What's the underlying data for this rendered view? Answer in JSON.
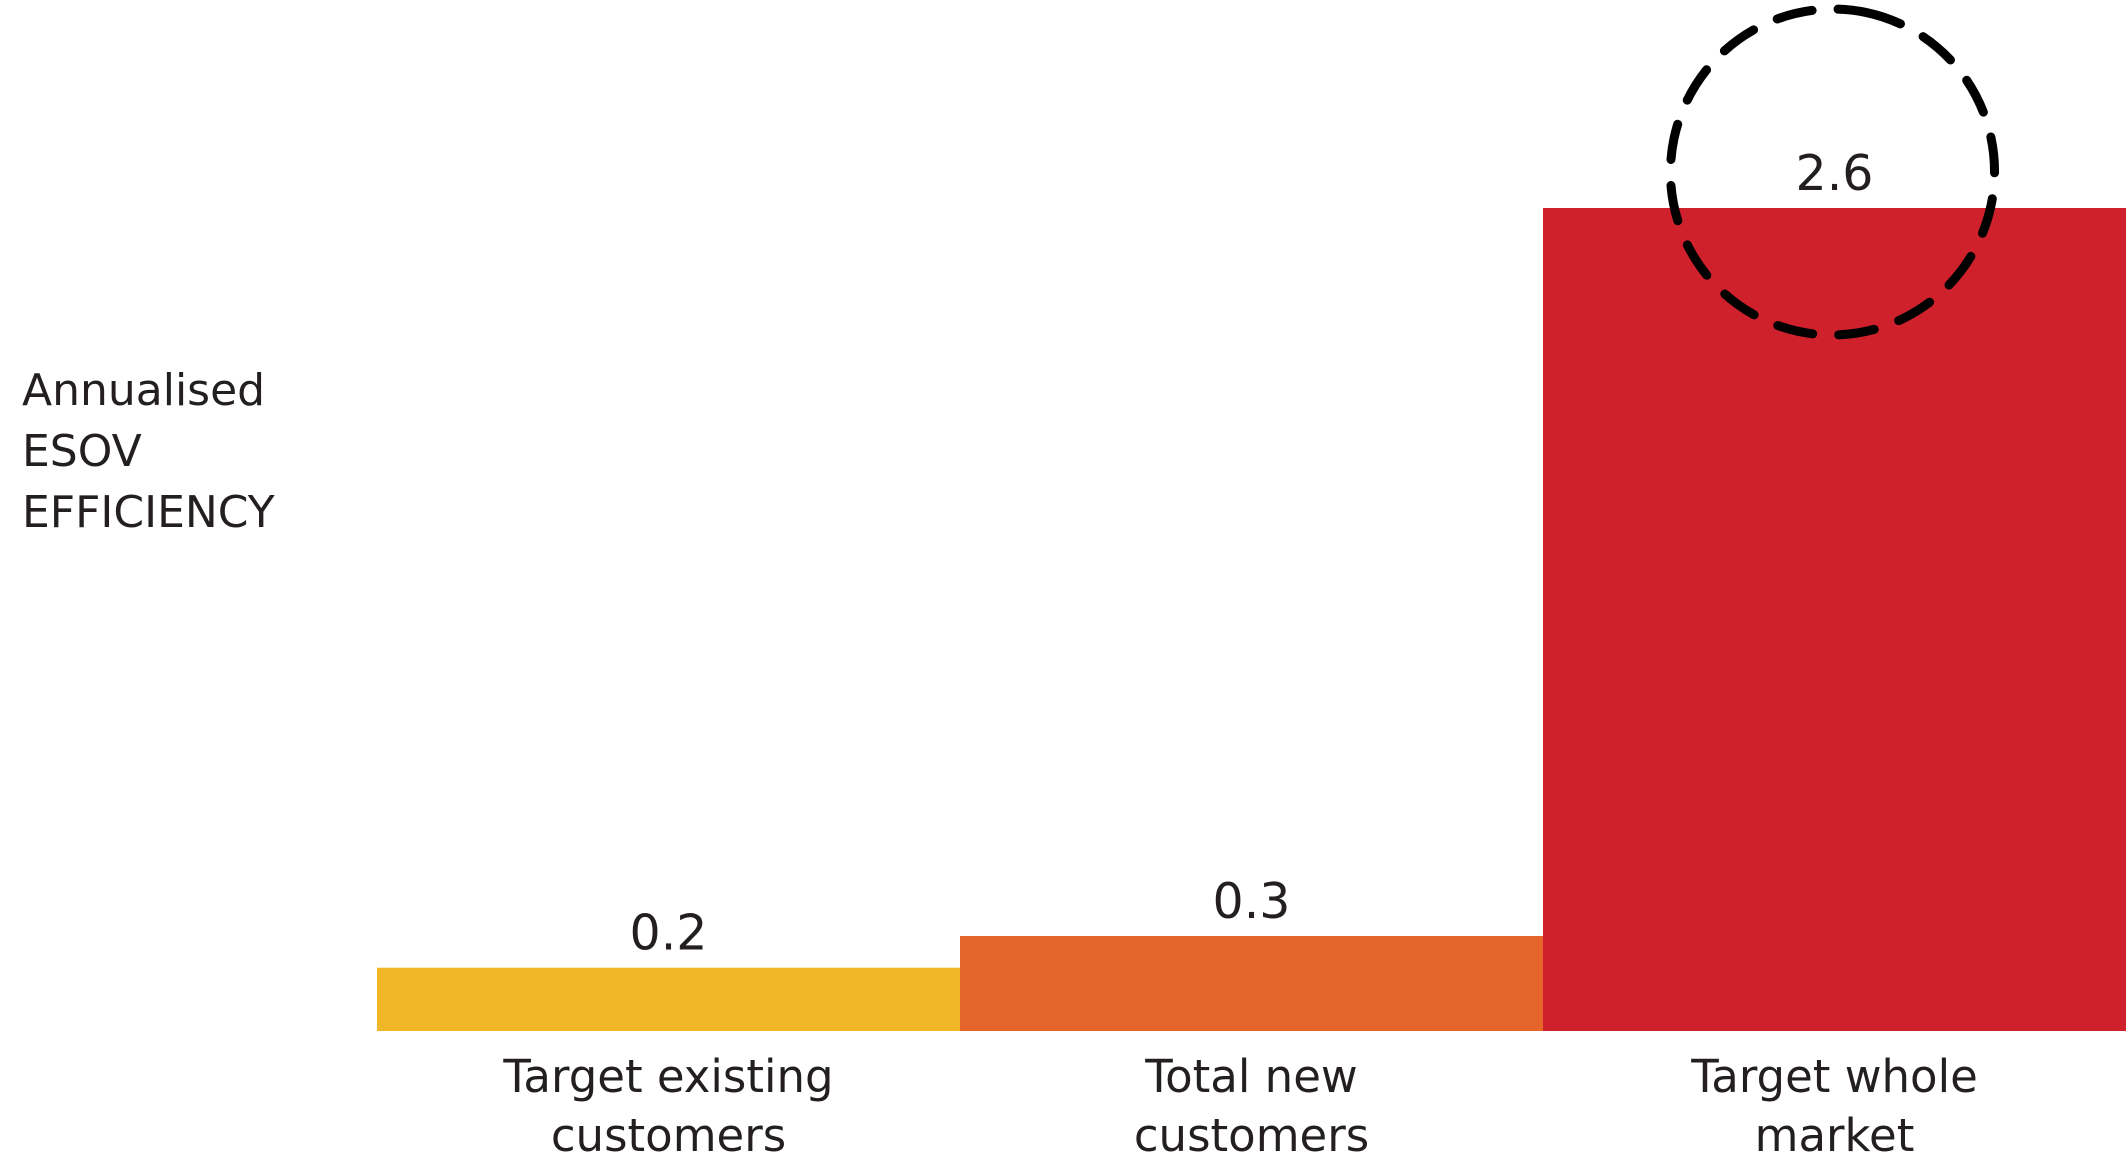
{
  "chart_data": {
    "type": "bar",
    "categories": [
      "Target existing customers",
      "Total new customers",
      "Target whole market"
    ],
    "category_lines": [
      [
        "Target existing",
        "customers"
      ],
      [
        "Total new",
        "customers"
      ],
      [
        "Target whole",
        "market"
      ]
    ],
    "values": [
      0.2,
      0.3,
      2.6
    ],
    "value_labels": [
      "0.2",
      "0.3",
      "2.6"
    ],
    "colors": [
      "#efb627",
      "#e5642a",
      "#cf212c"
    ],
    "ylabel_lines": [
      "Annualised",
      "ESOV",
      "EFFICIENCY"
    ],
    "ylim": [
      0,
      2.6
    ],
    "grid": false,
    "legend": "none",
    "highlight": {
      "category": "Target whole market",
      "style": "dashed-circle",
      "color": "#000000"
    }
  }
}
